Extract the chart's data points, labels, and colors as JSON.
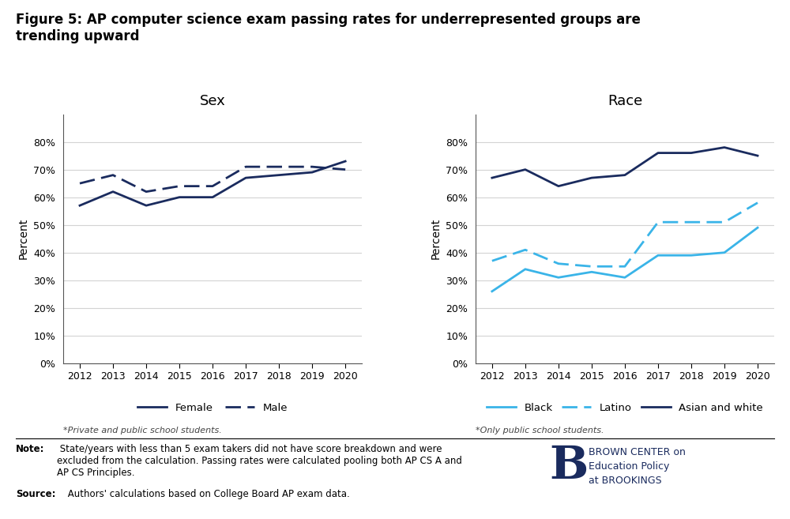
{
  "title_bold": "Figure 5: ",
  "title_rest": "AP computer science exam passing rates for underrepresented groups are\ntrending upward",
  "years": [
    2012,
    2013,
    2014,
    2015,
    2016,
    2017,
    2018,
    2019,
    2020
  ],
  "sex_female": [
    0.57,
    0.62,
    0.57,
    0.6,
    0.6,
    0.67,
    0.68,
    0.69,
    0.73
  ],
  "sex_male": [
    0.65,
    0.68,
    0.62,
    0.64,
    0.64,
    0.71,
    0.71,
    0.71,
    0.7
  ],
  "race_black": [
    0.26,
    0.34,
    0.31,
    0.33,
    0.31,
    0.39,
    0.39,
    0.4,
    0.49
  ],
  "race_latino": [
    0.37,
    0.41,
    0.36,
    0.35,
    0.35,
    0.51,
    0.51,
    0.51,
    0.58
  ],
  "race_asian_white": [
    0.67,
    0.7,
    0.64,
    0.67,
    0.68,
    0.76,
    0.76,
    0.78,
    0.75
  ],
  "color_dark_navy": "#1a2b5e",
  "color_light_blue": "#3ab4e8",
  "sex_subtitle": "Sex",
  "race_subtitle": "Race",
  "ylabel": "Percent",
  "sex_footnote": "*Private and public school students.",
  "race_footnote": "*Only public school students.",
  "note_bold": "Note:",
  "note_rest": " State/years with less than 5 exam takers did not have score breakdown and were\nexcluded from the calculation. Passing rates were calculated pooling both AP CS A and\nAP CS Principles.",
  "source_bold": "Source:",
  "source_rest": " Authors' calculations based on College Board AP exam data.",
  "brookings_b": "B",
  "brookings_text": "BROWN CENTER on\nEducation Policy\nat BROOKINGS",
  "ylim": [
    0,
    0.9
  ],
  "yticks": [
    0.0,
    0.1,
    0.2,
    0.3,
    0.4,
    0.5,
    0.6,
    0.7,
    0.8
  ],
  "background_color": "#ffffff",
  "grid_color": "#d3d3d3",
  "spine_color": "#555555"
}
